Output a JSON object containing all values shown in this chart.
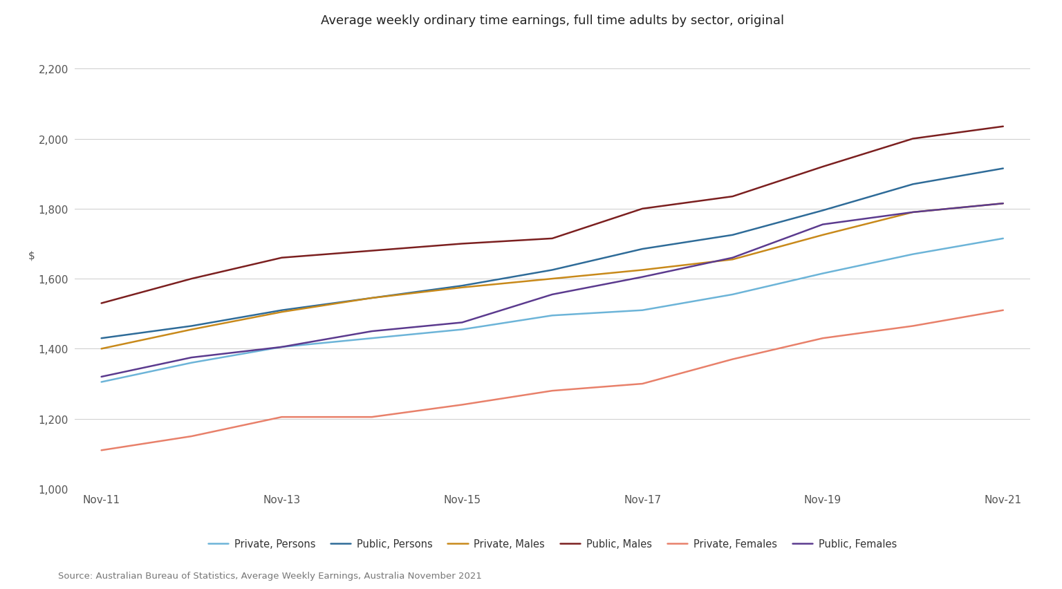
{
  "title": "Average weekly ordinary time earnings, full time adults by sector, original",
  "ylabel": "$",
  "source": "Source: Australian Bureau of Statistics, Average Weekly Earnings, Australia November 2021",
  "x_years": [
    2011,
    2012,
    2013,
    2014,
    2015,
    2016,
    2017,
    2018,
    2019,
    2020,
    2021
  ],
  "x_tick_years": [
    2011,
    2013,
    2015,
    2017,
    2019,
    2021
  ],
  "series": {
    "Private, Persons": {
      "color": "#6CB4D8",
      "values": [
        1305,
        1360,
        1405,
        1430,
        1455,
        1495,
        1510,
        1555,
        1615,
        1670,
        1715
      ]
    },
    "Public, Persons": {
      "color": "#2E6B98",
      "values": [
        1430,
        1465,
        1510,
        1545,
        1580,
        1625,
        1685,
        1725,
        1795,
        1870,
        1915
      ]
    },
    "Private, Males": {
      "color": "#C8891A",
      "values": [
        1400,
        1455,
        1505,
        1545,
        1575,
        1600,
        1625,
        1655,
        1725,
        1790,
        1815
      ]
    },
    "Public, Males": {
      "color": "#7B1F1F",
      "values": [
        1530,
        1600,
        1660,
        1680,
        1700,
        1715,
        1800,
        1835,
        1920,
        2000,
        2035
      ]
    },
    "Private, Females": {
      "color": "#E8806A",
      "values": [
        1110,
        1150,
        1205,
        1205,
        1240,
        1280,
        1300,
        1370,
        1430,
        1465,
        1510
      ]
    },
    "Public, Females": {
      "color": "#5B3A8E",
      "values": [
        1320,
        1375,
        1405,
        1450,
        1475,
        1555,
        1605,
        1660,
        1755,
        1790,
        1815
      ]
    }
  },
  "ylim": [
    1000,
    2280
  ],
  "yticks": [
    1000,
    1200,
    1400,
    1600,
    1800,
    2000,
    2200
  ],
  "background_color": "#ffffff",
  "grid_color": "#cccccc",
  "title_fontsize": 13,
  "tick_fontsize": 11,
  "legend_fontsize": 10.5,
  "source_fontsize": 9.5
}
